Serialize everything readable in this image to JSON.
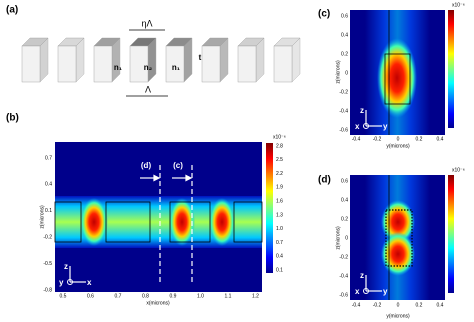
{
  "panel_a": {
    "label": "(a)",
    "fill_width": "ηΛ",
    "index_left": "n₁",
    "index_mid": "n₂",
    "index_right": "n₁",
    "thickness": "t",
    "period": "Λ"
  },
  "panel_b": {
    "label": "(b)",
    "y_ticks": [
      "0.7",
      "0.4",
      "0.1",
      "-0.2",
      "-0.5",
      "-0.8"
    ],
    "x_ticks": [
      "0.5",
      "0.6",
      "0.7",
      "0.8",
      "0.9",
      "1.0",
      "1.1",
      "1.2"
    ],
    "x_label": "x(microns)",
    "y_label": "z(microns)",
    "colorbar_exponent": "x10⁻⁶",
    "colorbar_ticks": [
      "2.8",
      "2.5",
      "2.2",
      "1.9",
      "1.6",
      "1.3",
      "1.0",
      "0.7",
      "0.4",
      "0.1"
    ],
    "marker_d": "(d)",
    "marker_c": "(c)",
    "axis_up": "z",
    "axis_out": "y",
    "axis_right": "x"
  },
  "panel_c": {
    "label": "(c)",
    "y_ticks": [
      "0.6",
      "0.4",
      "0.2",
      "0",
      "-0.2",
      "-0.4",
      "-0.6"
    ],
    "x_ticks": [
      "-0.4",
      "-0.2",
      "0",
      "0.2",
      "0.4"
    ],
    "x_label": "y(microns)",
    "y_label": "z(microns)",
    "colorbar_exponent": "x10⁻⁶",
    "axis_up": "z",
    "axis_out": "x",
    "axis_right": "y"
  },
  "panel_d": {
    "label": "(d)",
    "y_ticks": [
      "0.6",
      "0.4",
      "0.2",
      "0",
      "-0.2",
      "-0.4",
      "-0.6"
    ],
    "x_ticks": [
      "-0.4",
      "-0.2",
      "0",
      "0.2",
      "0.4"
    ],
    "x_label": "y(microns)",
    "y_label": "z(microns)",
    "colorbar_exponent": "x10⁻⁶",
    "axis_up": "z",
    "axis_out": "x",
    "axis_right": "y"
  }
}
